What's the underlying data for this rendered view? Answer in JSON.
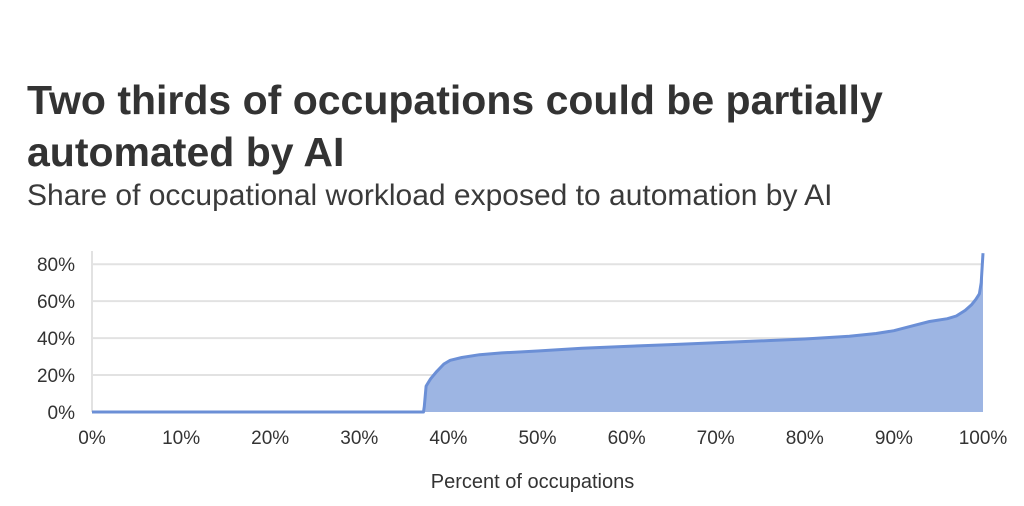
{
  "title": "Two thirds of occupations could be partially automated by AI",
  "subtitle": "Share of occupational workload exposed to automation by AI",
  "chart_data": {
    "type": "area",
    "title": "Two thirds of occupations could be partially automated by AI",
    "subtitle": "Share of occupational workload exposed to automation by AI",
    "xlabel": "Percent of occupations",
    "ylabel": "",
    "xlim": [
      0,
      100
    ],
    "ylim": [
      0,
      85
    ],
    "x_ticks": [
      "0%",
      "10%",
      "20%",
      "30%",
      "40%",
      "50%",
      "60%",
      "70%",
      "80%",
      "90%",
      "100%"
    ],
    "x_tick_values": [
      0,
      10,
      20,
      30,
      40,
      50,
      60,
      70,
      80,
      90,
      100
    ],
    "y_ticks": [
      "0%",
      "20%",
      "40%",
      "60%",
      "80%"
    ],
    "y_tick_values": [
      0,
      20,
      40,
      60,
      80
    ],
    "grid": "horizontal",
    "colors": {
      "line": "#6b8fd6",
      "fill": "#9db5e3",
      "grid": "#e2e2e2"
    },
    "series": [
      {
        "x": [
          0,
          37.2,
          37.3,
          37.5,
          38.0,
          38.7,
          39.5,
          40.2,
          41.5,
          43.5,
          46.0,
          50.0,
          55.0,
          60.0,
          65.0,
          70.0,
          75.0,
          80.0,
          85.0,
          88.0,
          90.0,
          92.0,
          94.0,
          96.0,
          97.0,
          98.0,
          98.7,
          99.2,
          99.6,
          99.8,
          100.0
        ],
        "y": [
          0,
          0,
          3,
          14,
          18,
          22,
          26,
          28,
          29.5,
          31,
          32,
          33,
          34.5,
          35.5,
          36.5,
          37.5,
          38.5,
          39.5,
          41,
          42.5,
          44,
          46.5,
          49,
          50.5,
          52,
          55,
          58,
          61,
          64,
          70,
          86
        ]
      }
    ]
  }
}
